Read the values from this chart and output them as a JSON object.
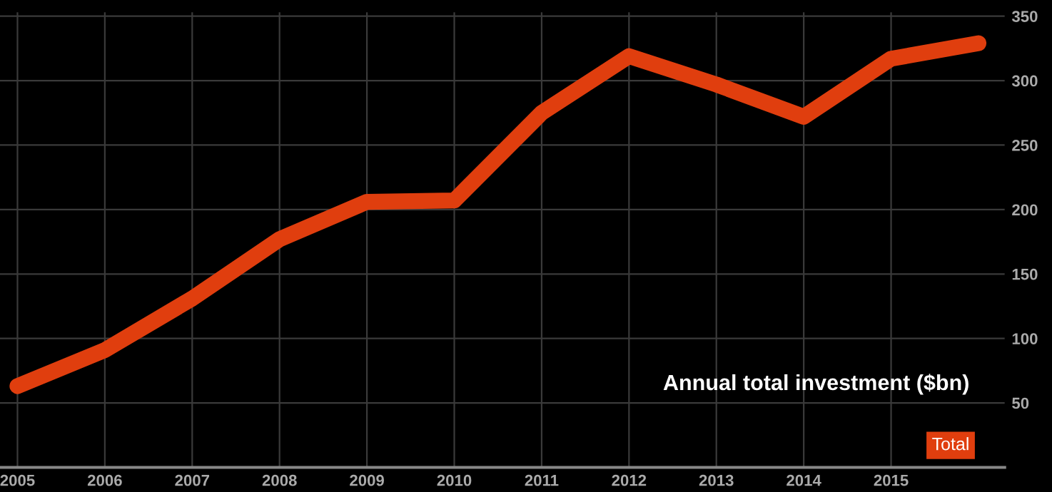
{
  "chart_data": {
    "type": "line",
    "title": "Annual total investment ($bn)",
    "x": [
      2005,
      2006,
      2007,
      2008,
      2009,
      2010,
      2011,
      2012,
      2013,
      2014,
      2015,
      2016
    ],
    "series": [
      {
        "name": "Total",
        "color": "#e03e0e",
        "values": [
          63,
          91,
          131,
          177,
          206,
          207,
          275,
          319,
          297,
          272,
          317,
          329
        ]
      }
    ],
    "xlim": [
      2004.8,
      2016.3
    ],
    "xticks": [
      2005,
      2006,
      2007,
      2008,
      2009,
      2010,
      2011,
      2012,
      2013,
      2014,
      2015
    ],
    "ylim": [
      0,
      353
    ],
    "yticks": [
      50,
      100,
      150,
      200,
      250,
      300,
      350
    ],
    "grid": true,
    "legend": "bottom right",
    "line_style": "solid"
  }
}
